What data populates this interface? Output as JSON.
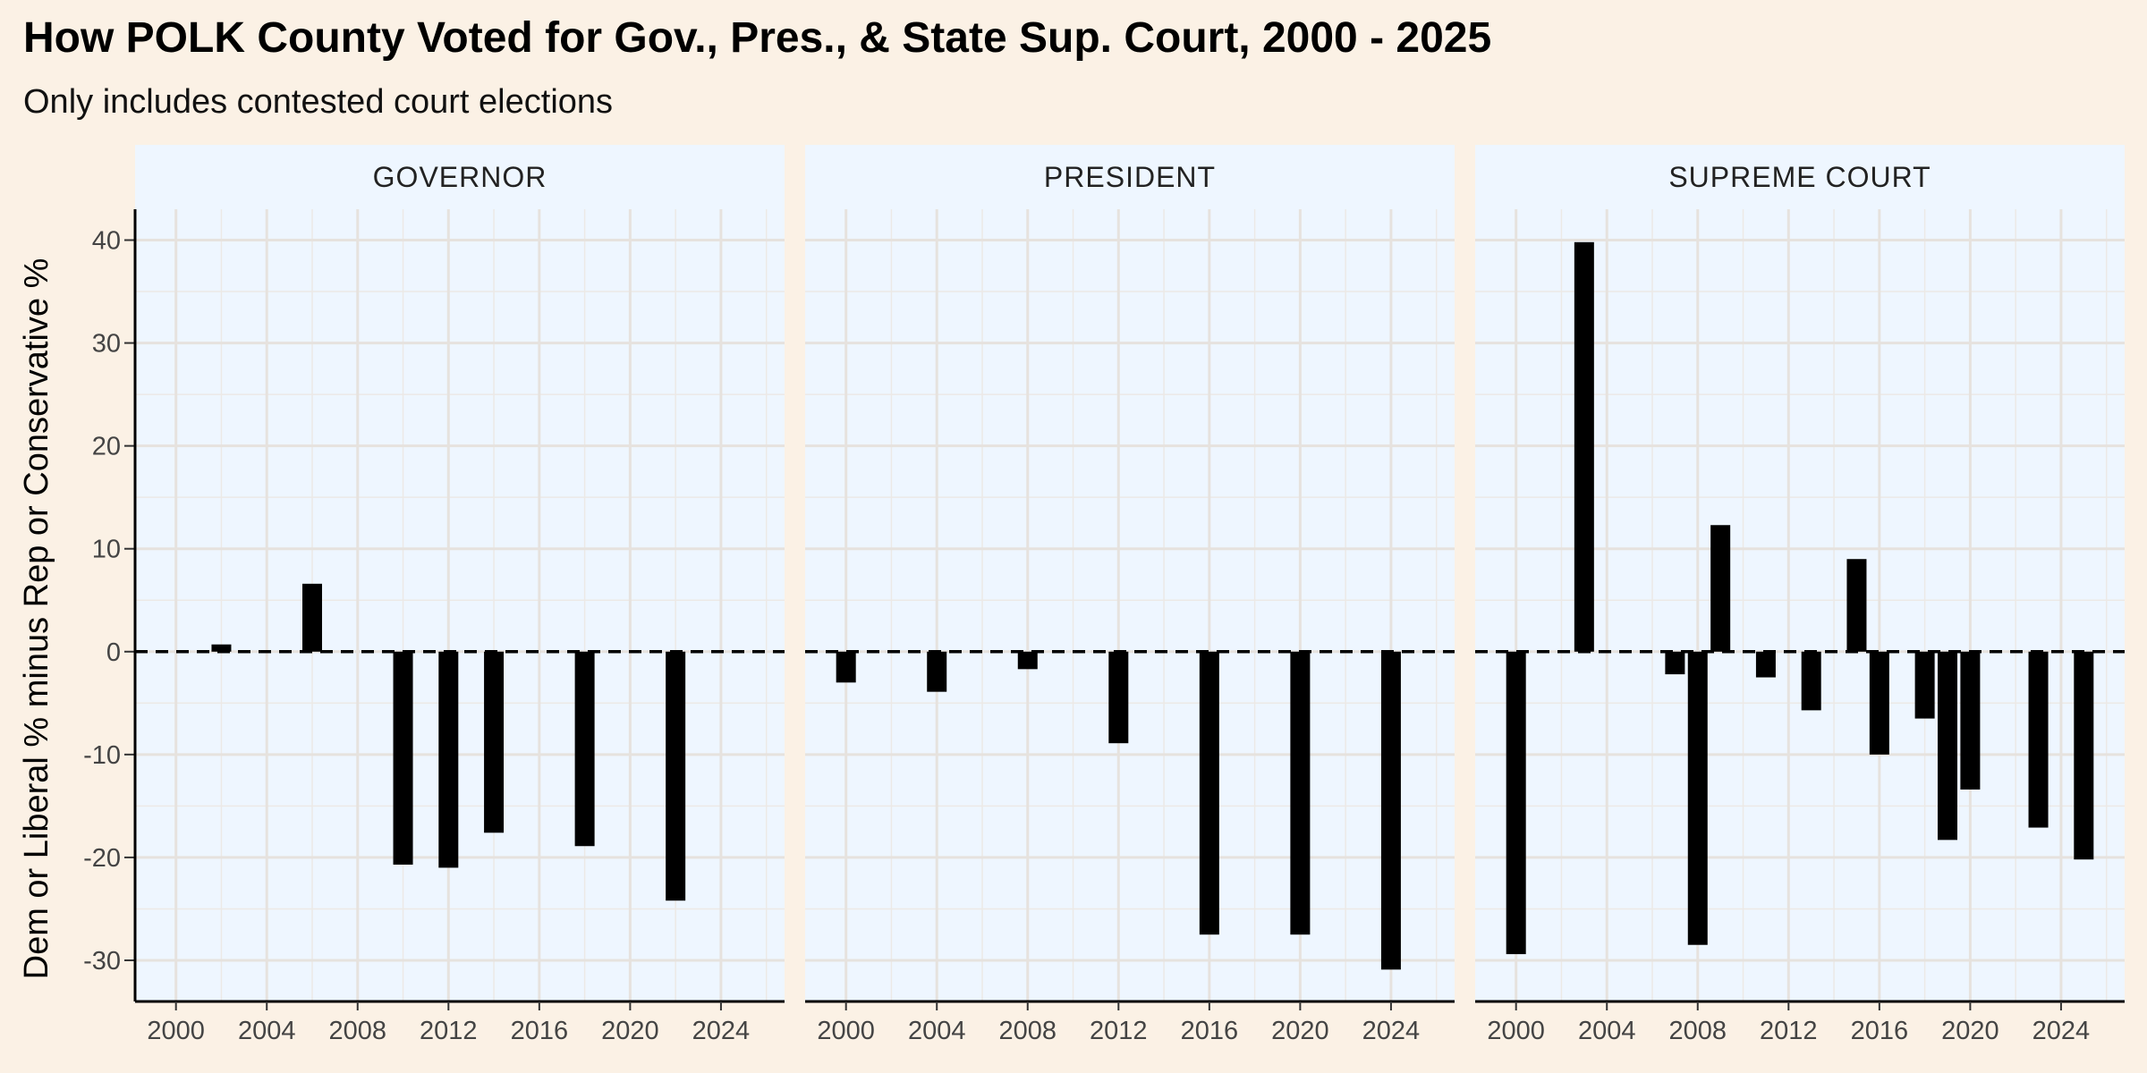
{
  "chart_data": {
    "type": "bar",
    "title": "How POLK County Voted for Gov., Pres., & State Sup. Court, 2000 - 2025",
    "subtitle": "Only includes contested court elections",
    "ylabel": "Dem or Liberal % minus Rep or Conservative %",
    "xlabel": "",
    "ylim": [
      -34,
      43
    ],
    "xlim": [
      1998.2,
      2026.8
    ],
    "x_ticks": [
      2000,
      2004,
      2008,
      2012,
      2016,
      2020,
      2024
    ],
    "y_ticks": [
      -30,
      -20,
      -10,
      0,
      10,
      20,
      30,
      40
    ],
    "reference_line": 0,
    "grid": true,
    "bar_color": "#000000",
    "panel_background": "#eef6ff",
    "strip_background": "#eef6ff",
    "page_background": "#fbf1e5",
    "facets": [
      {
        "label": "GOVERNOR",
        "x": [
          2002,
          2006,
          2010,
          2012,
          2014,
          2018,
          2022
        ],
        "values": [
          0.7,
          6.6,
          -20.7,
          -21.0,
          -17.6,
          -18.9,
          -24.2
        ]
      },
      {
        "label": "PRESIDENT",
        "x": [
          2000,
          2004,
          2008,
          2012,
          2016,
          2020,
          2024
        ],
        "values": [
          -3.0,
          -3.9,
          -1.7,
          -8.9,
          -27.5,
          -27.5,
          -30.9
        ]
      },
      {
        "label": "SUPREME COURT",
        "x": [
          2000,
          2003,
          2007,
          2008,
          2009,
          2011,
          2013,
          2015,
          2016,
          2018,
          2019,
          2020,
          2023,
          2025
        ],
        "values": [
          -29.4,
          39.8,
          -2.2,
          -28.5,
          12.3,
          -2.5,
          -5.7,
          9.0,
          -10.0,
          -6.5,
          -18.3,
          -13.4,
          -17.1,
          -20.2
        ]
      }
    ]
  }
}
